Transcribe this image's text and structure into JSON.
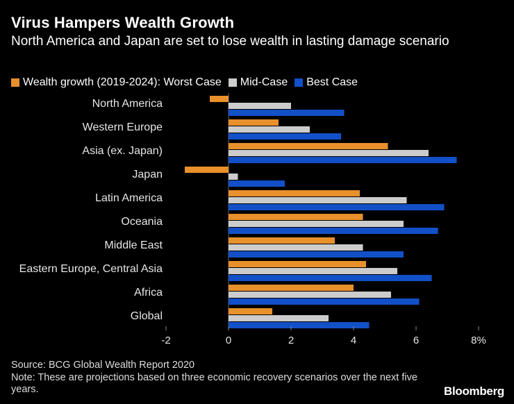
{
  "title": "Virus Hampers Wealth Growth",
  "subtitle": "North America and Japan are set to lose wealth in lasting damage scenario",
  "source": "Source: BCG Global Wealth Report 2020",
  "note": "Note: These are projections based on three economic recovery scenarios over the next five years.",
  "brand": "Bloomberg",
  "chart_data": {
    "type": "bar",
    "orientation": "horizontal",
    "title": "Virus Hampers Wealth Growth",
    "categories": [
      "North America",
      "Western Europe",
      "Asia (ex. Japan)",
      "Japan",
      "Latin America",
      "Oceania",
      "Middle East",
      "Eastern Europe, Central Asia",
      "Africa",
      "Global"
    ],
    "series": [
      {
        "name": "Wealth growth (2019-2024): Worst Case",
        "color": "#e8902b",
        "values": [
          -0.6,
          1.6,
          5.1,
          -1.4,
          4.2,
          4.3,
          3.4,
          4.4,
          4.0,
          1.4
        ]
      },
      {
        "name": "Mid-Case",
        "color": "#cccccc",
        "values": [
          2.0,
          2.6,
          6.4,
          0.3,
          5.7,
          5.6,
          4.3,
          5.4,
          5.2,
          3.2
        ]
      },
      {
        "name": "Best Case",
        "color": "#1250c8",
        "values": [
          3.7,
          3.6,
          7.3,
          1.8,
          6.9,
          6.7,
          5.6,
          6.5,
          6.1,
          4.5
        ]
      }
    ],
    "xlim": [
      -2,
      8
    ],
    "xticks": [
      "-2",
      "0",
      "2",
      "4",
      "6",
      "8%"
    ],
    "xlabel": "",
    "ylabel": "",
    "legend_position": "top"
  }
}
